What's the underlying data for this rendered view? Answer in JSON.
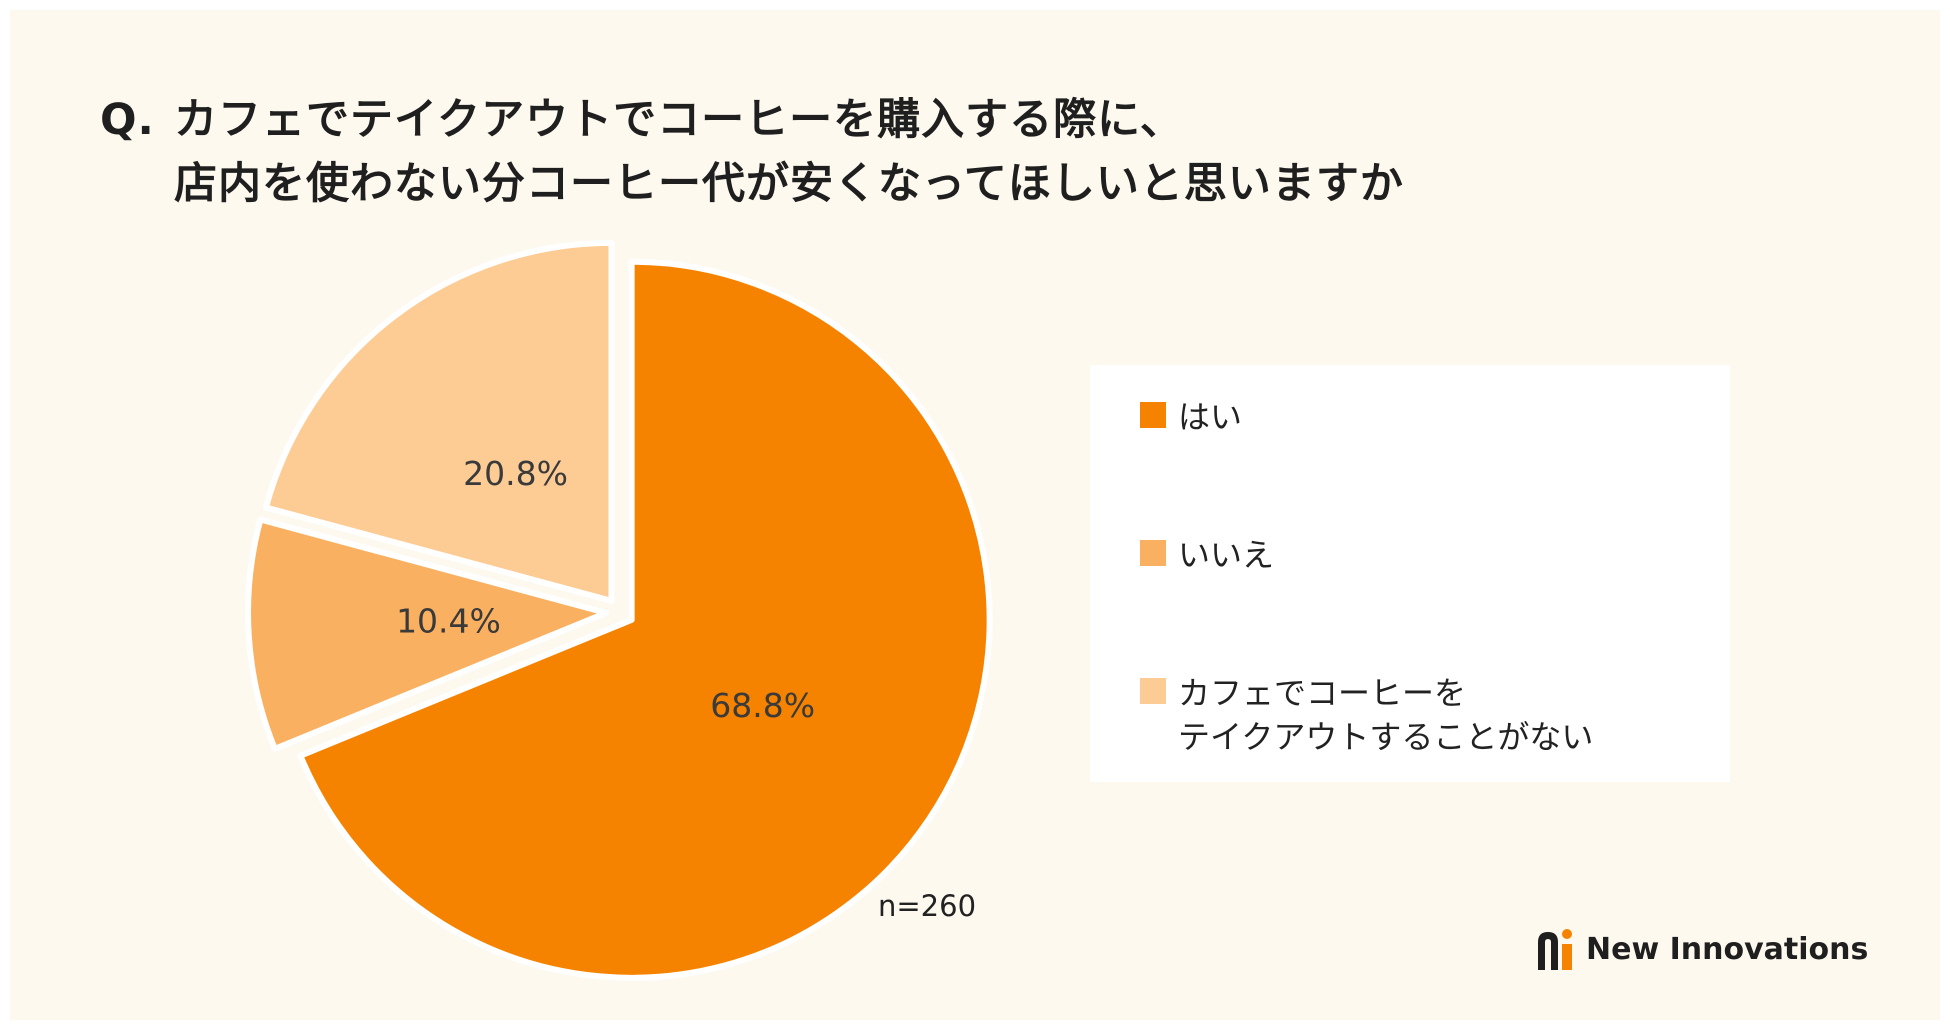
{
  "title": {
    "prefix": "Q.",
    "line1": "カフェでテイクアウトでコーヒーを購入する際に、",
    "line2": "店内を使わない分コーヒー代が安くなってほしいと思いますか"
  },
  "chart_data": {
    "type": "pie",
    "slices": [
      {
        "label": "はい",
        "value": 68.8,
        "display": "68.8%",
        "color": "#f68300"
      },
      {
        "label": "いいえ",
        "value": 10.4,
        "display": "10.4%",
        "color": "#fab061"
      },
      {
        "label": "カフェでコーヒーをテイクアウトすることがない",
        "value": 20.8,
        "display": "20.8%",
        "color": "#fdcc95"
      }
    ],
    "start": "12 o'clock",
    "direction": "clockwise",
    "exploded": "all slices",
    "legend_position": "right",
    "sample_size": "n=260"
  },
  "legend": {
    "items": [
      {
        "lines": [
          "はい"
        ],
        "color": "#f68300"
      },
      {
        "lines": [
          "いいえ"
        ],
        "color": "#fab061"
      },
      {
        "lines": [
          "カフェでコーヒーを",
          "テイクアウトすることがない"
        ],
        "color": "#fdcc95"
      }
    ]
  },
  "footer": {
    "brand": "New Innovations"
  },
  "colors": {
    "background": "#fdf9ef",
    "brand_orange": "#f68300"
  }
}
